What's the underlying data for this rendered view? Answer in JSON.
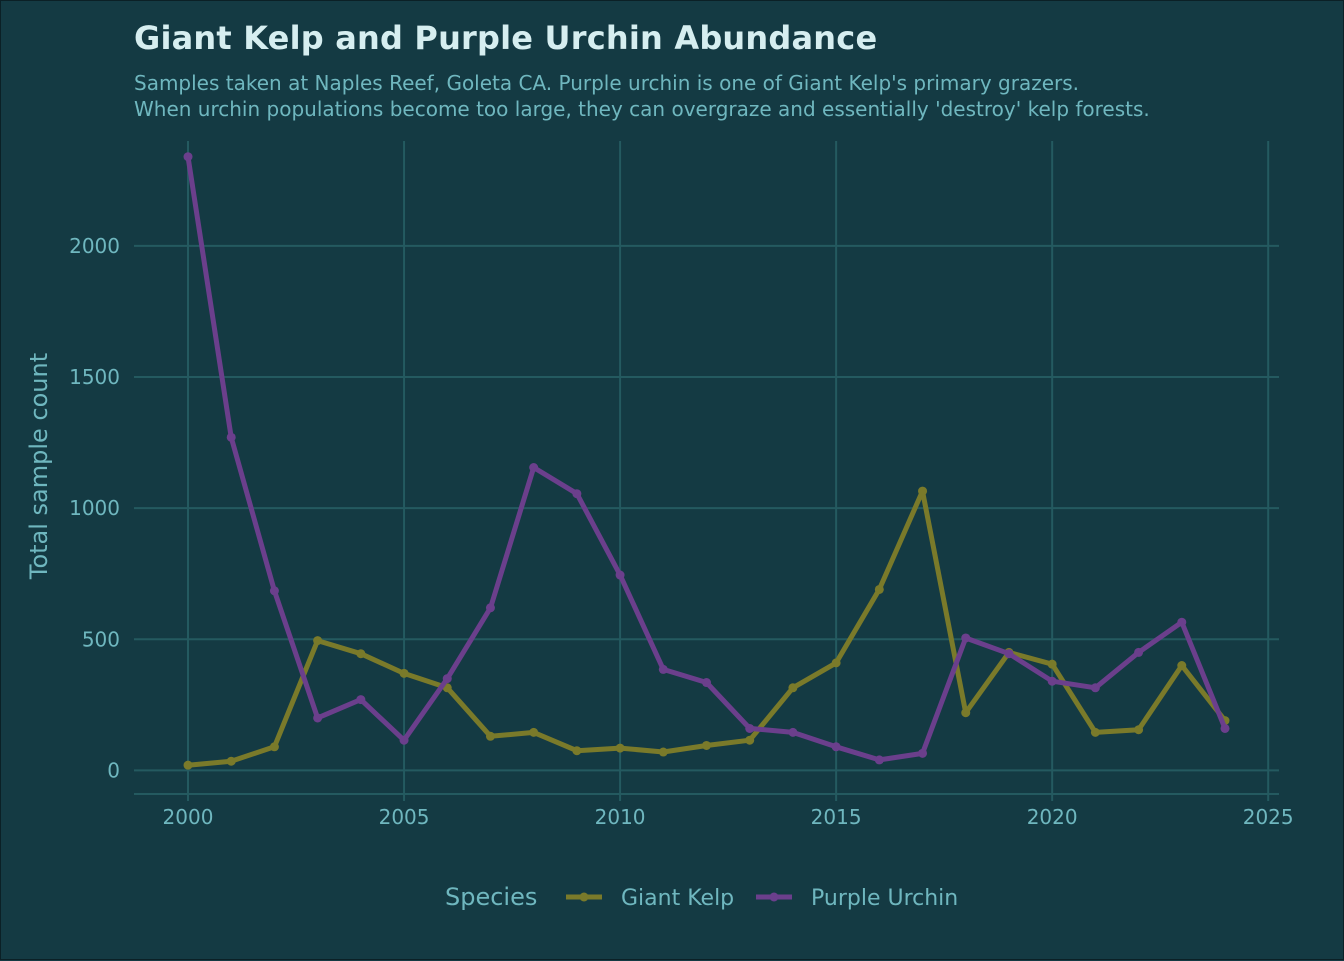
{
  "chart_data": {
    "type": "line",
    "title": "Giant Kelp and Purple Urchin Abundance",
    "subtitle_lines": [
      "Samples taken at Naples Reef, Goleta CA. Purple urchin is one of Giant Kelp's primary grazers.",
      "When urchin populations become too large, they can overgraze and essentially 'destroy' kelp forests."
    ],
    "xlabel": "",
    "ylabel": "Total sample count",
    "xlim": [
      1998.75,
      2025.25
    ],
    "ylim": [
      -90,
      2400
    ],
    "x_ticks": [
      2000,
      2005,
      2010,
      2015,
      2020,
      2025
    ],
    "y_ticks": [
      0,
      500,
      1000,
      1500,
      2000
    ],
    "grid": true,
    "legend": {
      "title": "Species",
      "position": "bottom"
    },
    "x": [
      2000,
      2001,
      2002,
      2003,
      2004,
      2005,
      2006,
      2007,
      2008,
      2009,
      2010,
      2011,
      2012,
      2013,
      2014,
      2015,
      2016,
      2017,
      2018,
      2019,
      2020,
      2021,
      2022,
      2023,
      2024
    ],
    "series": [
      {
        "name": "Giant Kelp",
        "color": "#7a7a2a",
        "values": [
          20,
          35,
          90,
          495,
          445,
          370,
          315,
          130,
          145,
          75,
          85,
          70,
          95,
          115,
          315,
          410,
          690,
          1065,
          220,
          450,
          405,
          145,
          155,
          400,
          190
        ]
      },
      {
        "name": "Purple Urchin",
        "color": "#6b3f8c",
        "values": [
          2340,
          1270,
          685,
          200,
          270,
          115,
          350,
          620,
          1155,
          1055,
          745,
          385,
          335,
          160,
          145,
          90,
          40,
          65,
          505,
          445,
          340,
          315,
          450,
          565,
          160
        ]
      }
    ]
  }
}
